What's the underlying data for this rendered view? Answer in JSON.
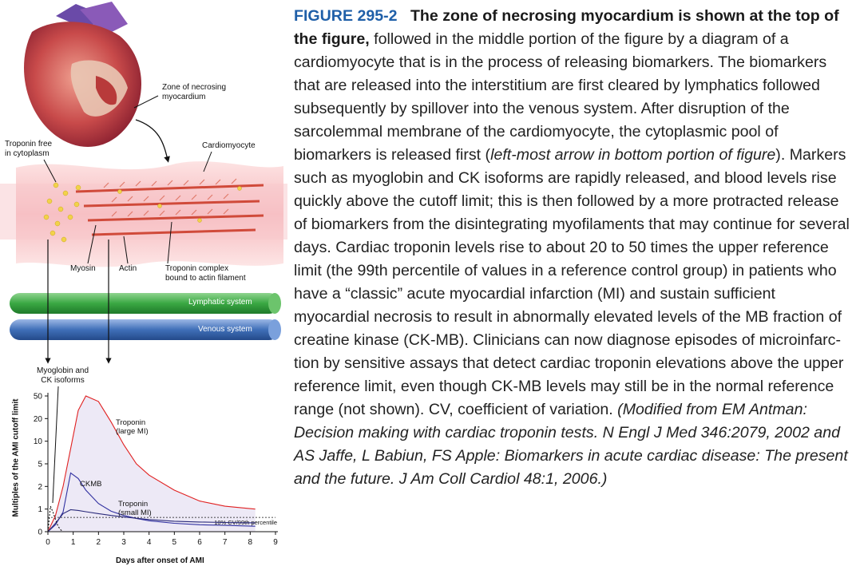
{
  "figure": {
    "labels": {
      "zone": "Zone of necrosing\nmyocardium",
      "troponin_free": "Troponin free\nin cytoplasm",
      "cardiomyocyte": "Cardiomyocyte",
      "myosin": "Myosin",
      "actin": "Actin",
      "troponin_complex": "Troponin complex\nbound to actin filament",
      "lymphatic": "Lymphatic system",
      "venous": "Venous system",
      "myoglobin": "Myoglobin and\nCK isoforms"
    },
    "colors": {
      "lymphatic": "#3aa843",
      "venous": "#3f6fb8",
      "troponin_large": "#e02020",
      "ckmb": "#3030a0",
      "troponin_small": "#2a2a7a",
      "myofilament": "#d04a3a",
      "granule": "#f2d24a"
    }
  },
  "chart_data": {
    "type": "line",
    "xlabel": "Days after onset of AMI",
    "ylabel": "Multiples of the AMI cutoff limit",
    "x_ticks": [
      "0",
      "1",
      "2",
      "3",
      "4",
      "5",
      "6",
      "7",
      "8",
      "9"
    ],
    "y_ticks": [
      "0",
      "1",
      "2",
      "5",
      "10",
      "20",
      "50"
    ],
    "y_tick_values": [
      0,
      1,
      2,
      5,
      10,
      20,
      50
    ],
    "xlim": [
      0,
      9
    ],
    "grid": false,
    "series": [
      {
        "name": "Troponin\n(large MI)",
        "x": [
          0,
          0.3,
          0.6,
          0.9,
          1.2,
          1.5,
          2,
          2.5,
          3,
          3.5,
          4,
          5,
          6,
          7,
          8.2
        ],
        "y": [
          0,
          0.6,
          2,
          8,
          28,
          50,
          40,
          18,
          9,
          5,
          3.2,
          1.8,
          1.3,
          1.1,
          1
        ]
      },
      {
        "name": "CKMB",
        "x": [
          0,
          0.3,
          0.6,
          0.9,
          1.2,
          1.5,
          2,
          2.5,
          3,
          3.5,
          4,
          5,
          6,
          7,
          8.2
        ],
        "y": [
          0,
          0.2,
          0.8,
          3.5,
          2.8,
          1.8,
          1.2,
          0.85,
          0.6,
          0.45,
          0.35,
          0.25,
          0.2,
          0.18,
          0.15
        ]
      },
      {
        "name": "Troponin\n(small MI)",
        "x": [
          0,
          0.3,
          0.6,
          0.9,
          1.2,
          1.5,
          2,
          2.5,
          3,
          3.5,
          4,
          5,
          6,
          7,
          8.2
        ],
        "y": [
          0,
          0.25,
          0.7,
          0.95,
          0.9,
          0.82,
          0.7,
          0.6,
          0.52,
          0.46,
          0.4,
          0.33,
          0.3,
          0.28,
          0.27
        ]
      },
      {
        "name": "Myoglobin and\nCK isoforms",
        "x": [
          0,
          0.1,
          0.2,
          0.3,
          0.4,
          0.5,
          0.6
        ],
        "y": [
          0,
          1.1,
          0.8,
          0.4,
          0.15,
          0.05,
          0
        ]
      }
    ],
    "reference_label": "10% CV/99th percentile",
    "reference_value": 0.5
  },
  "caption": {
    "fig_num": "FIGURE 295-2",
    "title": "The zone of necrosing myocardium is shown at the top of the figure,",
    "text1": " followed in the middle portion of the figure by a diagram of a cardiomyocyte that is in the process of releasing biomarkers. The biomarkers that are released into the interstitium are first cleared by lymphatics followed subsequently by spillover into the venous system. After disruption of the sarcolemmal membrane of the cardiomyocyte, the cytoplasmic pool of biomarkers is released first (",
    "italic1": "left-most arrow in bottom portion of figure",
    "text2": "). Markers such as myoglobin and CK isoforms are rapidly released, and blood levels rise quickly above the cutoff limit; this is then followed by a more protracted release of biomarkers from the disintegrating myofilaments that may continue for several days. Cardiac troponin levels rise to about 20 to 50 times the upper reference limit (the 99th percentile of values in a reference control group) in patients who have a “classic” acute myocardial infarction (MI) and sustain sufficient myocardial necrosis to result in abnormally elevated levels of the MB fraction of creatine kinase (CK-MB). Clinicians can now diagnose episodes of microinfarc-tion by sensitive assays that detect cardiac troponin elevations above the upper reference limit, even though CK-MB levels may still be in the normal reference range (not shown). CV, coefficient of variation. ",
    "italic2": "(Modified from EM Antman: Decision making with cardiac troponin tests. N Engl J Med 346:2079, 2002 and AS Jaffe, L Babiun, FS Apple: Biomarkers in acute cardiac disease: The present and the future. J Am Coll Cardiol 48:1, 2006.)"
  }
}
